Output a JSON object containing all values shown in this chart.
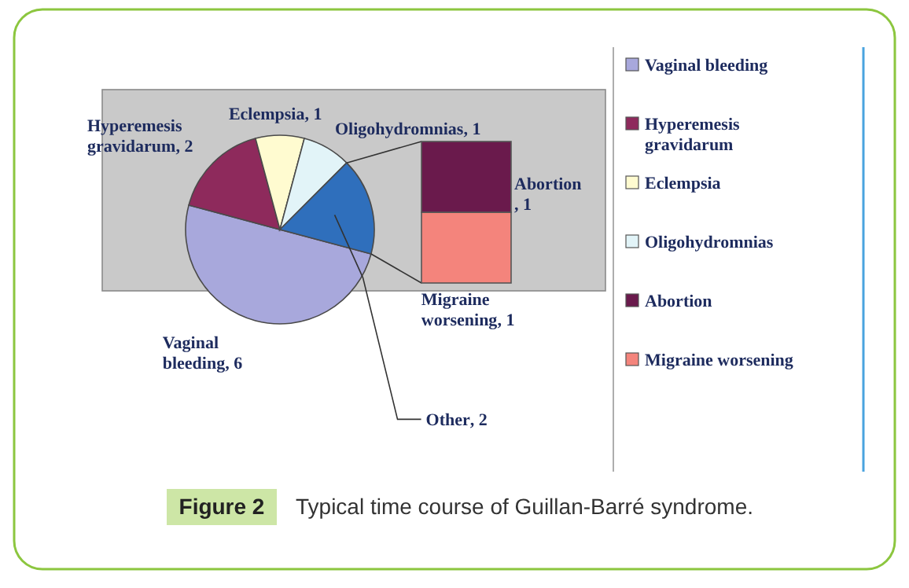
{
  "chart_data": [
    {
      "type": "pie",
      "categories": [
        "Vaginal bleeding",
        "Hyperemesis gravidarum",
        "Eclempsia",
        "Oligohydromnias",
        "Other"
      ],
      "values": [
        6,
        2,
        1,
        1,
        2
      ],
      "value_labels": [
        ", 6",
        ", 2",
        ", 1",
        ", 1",
        ", 2"
      ],
      "colors": [
        "#a8a8dc",
        "#8e2a5c",
        "#fffbd0",
        "#e2f4f8",
        "#2f6fbc"
      ],
      "legend": "right",
      "annotations": [
        "Figure 2",
        "Typical time course of Guillan-Barré syndrome."
      ]
    },
    {
      "type": "bar",
      "stacked": true,
      "categories": [
        null
      ],
      "series": [
        {
          "name": "Migraine worsening",
          "color": "#f4847c",
          "values": [
            1
          ],
          "value_labels": [
            ", 1"
          ]
        },
        {
          "name": "Abortion",
          "color": "#6a1a4c",
          "values": [
            1
          ],
          "value_labels": [
            ", 1"
          ]
        }
      ],
      "legend": "right"
    }
  ]
}
